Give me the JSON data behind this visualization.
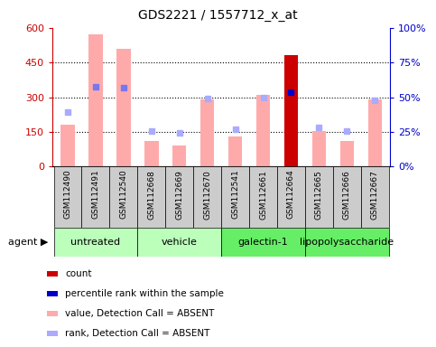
{
  "title": "GDS2221 / 1557712_x_at",
  "samples": [
    "GSM112490",
    "GSM112491",
    "GSM112540",
    "GSM112668",
    "GSM112669",
    "GSM112670",
    "GSM112541",
    "GSM112661",
    "GSM112664",
    "GSM112665",
    "GSM112666",
    "GSM112667"
  ],
  "bar_values": [
    180,
    570,
    510,
    110,
    90,
    290,
    130,
    310,
    480,
    155,
    110,
    290
  ],
  "bar_colors": [
    "#ffaaaa",
    "#ffaaaa",
    "#ffaaaa",
    "#ffaaaa",
    "#ffaaaa",
    "#ffaaaa",
    "#ffaaaa",
    "#ffaaaa",
    "#cc0000",
    "#ffaaaa",
    "#ffaaaa",
    "#ffaaaa"
  ],
  "rank_squares": [
    235,
    345,
    340,
    155,
    145,
    295,
    160,
    300,
    320,
    170,
    155,
    285
  ],
  "rank_colors": [
    "#aaaaff",
    "#7777ee",
    "#7777ee",
    "#aaaaff",
    "#aaaaff",
    "#aaaaff",
    "#aaaaff",
    "#aaaaff",
    "#0000cc",
    "#aaaaff",
    "#aaaaff",
    "#aaaaff"
  ],
  "ylim_left": [
    0,
    600
  ],
  "ylim_right": [
    0,
    100
  ],
  "yticks_left": [
    0,
    150,
    300,
    450,
    600
  ],
  "yticks_right": [
    0,
    25,
    50,
    75,
    100
  ],
  "ytick_labels_left": [
    "0",
    "150",
    "300",
    "450",
    "600"
  ],
  "ytick_labels_right": [
    "0%",
    "25%",
    "50%",
    "75%",
    "100%"
  ],
  "left_axis_color": "#cc0000",
  "right_axis_color": "#0000cc",
  "grid_lines": [
    150,
    300,
    450
  ],
  "group_names": [
    "untreated",
    "vehicle",
    "galectin-1",
    "lipopolysaccharide"
  ],
  "group_boundaries": [
    0,
    3,
    6,
    9,
    12
  ],
  "group_colors": [
    "#bbffbb",
    "#bbffbb",
    "#66ee66",
    "#66ee66"
  ],
  "legend_items": [
    {
      "color": "#cc0000",
      "label": "count"
    },
    {
      "color": "#0000cc",
      "label": "percentile rank within the sample"
    },
    {
      "color": "#ffaaaa",
      "label": "value, Detection Call = ABSENT"
    },
    {
      "color": "#aaaaff",
      "label": "rank, Detection Call = ABSENT"
    }
  ],
  "agent_label": "agent",
  "bar_width": 0.5,
  "xlabel_fontsize": 6.5,
  "ylabel_fontsize": 8,
  "title_fontsize": 10,
  "legend_fontsize": 7.5,
  "group_fontsize": 8
}
